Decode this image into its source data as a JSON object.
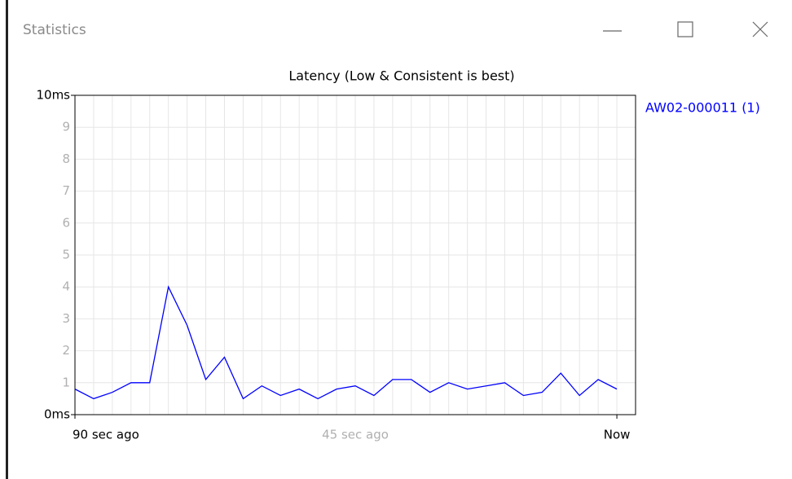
{
  "window": {
    "title": "Statistics"
  },
  "chart_data": {
    "type": "line",
    "title": "Latency (Low & Consistent is best)",
    "x": [
      0,
      1,
      2,
      3,
      4,
      5,
      6,
      7,
      8,
      9,
      10,
      11,
      12,
      13,
      14,
      15,
      16,
      17,
      18,
      19,
      20,
      21,
      22,
      23,
      24,
      25,
      26,
      27,
      28,
      29
    ],
    "series": [
      {
        "name": "AW02-000011 (1)",
        "color": "#0000ff",
        "values": [
          0.8,
          0.5,
          0.7,
          1.0,
          1.0,
          4.0,
          2.8,
          1.1,
          1.8,
          0.5,
          0.9,
          0.6,
          0.8,
          0.5,
          0.8,
          0.9,
          0.6,
          1.1,
          1.1,
          0.7,
          1.0,
          0.8,
          0.9,
          1.0,
          0.6,
          0.7,
          1.3,
          0.6,
          1.1,
          0.8
        ]
      }
    ],
    "xlim": [
      0,
      30
    ],
    "xticks": [
      {
        "value": 0,
        "label": "90 sec ago"
      },
      {
        "value": 15,
        "label": "45 sec ago"
      },
      {
        "value": 29,
        "label": "Now"
      }
    ],
    "ylim": [
      0,
      10
    ],
    "yticks": [
      {
        "value": 0,
        "label": "0ms"
      },
      1,
      2,
      3,
      4,
      5,
      6,
      7,
      8,
      9,
      {
        "value": 10,
        "label": "10ms"
      }
    ],
    "grid": true,
    "legend": "right"
  }
}
